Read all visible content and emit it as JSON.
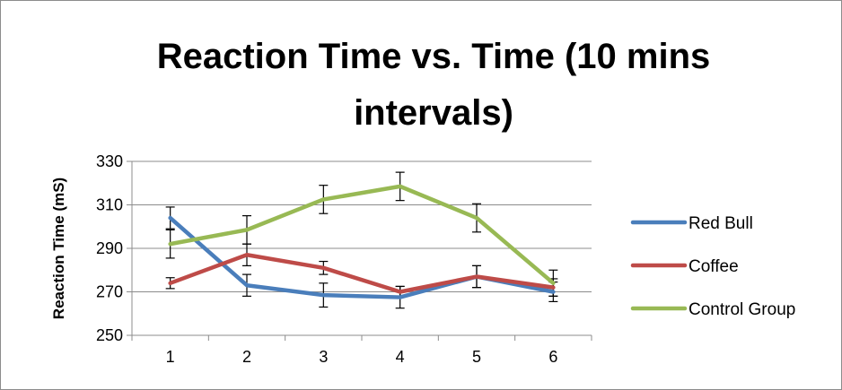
{
  "chart_data": {
    "type": "line",
    "title_line1": "Reaction Time vs. Time (10 mins",
    "title_line2": "intervals)",
    "xlabel": "",
    "ylabel": "Reaction Time (mS)",
    "categories": [
      "1",
      "2",
      "3",
      "4",
      "5",
      "6"
    ],
    "ylim": [
      250,
      330
    ],
    "yticks": [
      250,
      270,
      290,
      310,
      330
    ],
    "grid": true,
    "legend_position": "right",
    "series": [
      {
        "name": "Red Bull",
        "color": "#4a7ebb",
        "values": [
          304,
          273,
          268.5,
          267.5,
          277,
          270
        ],
        "errors": [
          5,
          5,
          5.5,
          5,
          5,
          4.5
        ]
      },
      {
        "name": "Coffee",
        "color": "#be4b48",
        "values": [
          274,
          287,
          281,
          270,
          277,
          272
        ],
        "errors": [
          2.5,
          5,
          3,
          2.5,
          5,
          4
        ]
      },
      {
        "name": "Control Group",
        "color": "#98b954",
        "values": [
          292,
          298.5,
          312.5,
          318.5,
          304,
          274
        ],
        "errors": [
          6.5,
          6.5,
          6.5,
          6.5,
          6.5,
          6
        ]
      }
    ]
  }
}
